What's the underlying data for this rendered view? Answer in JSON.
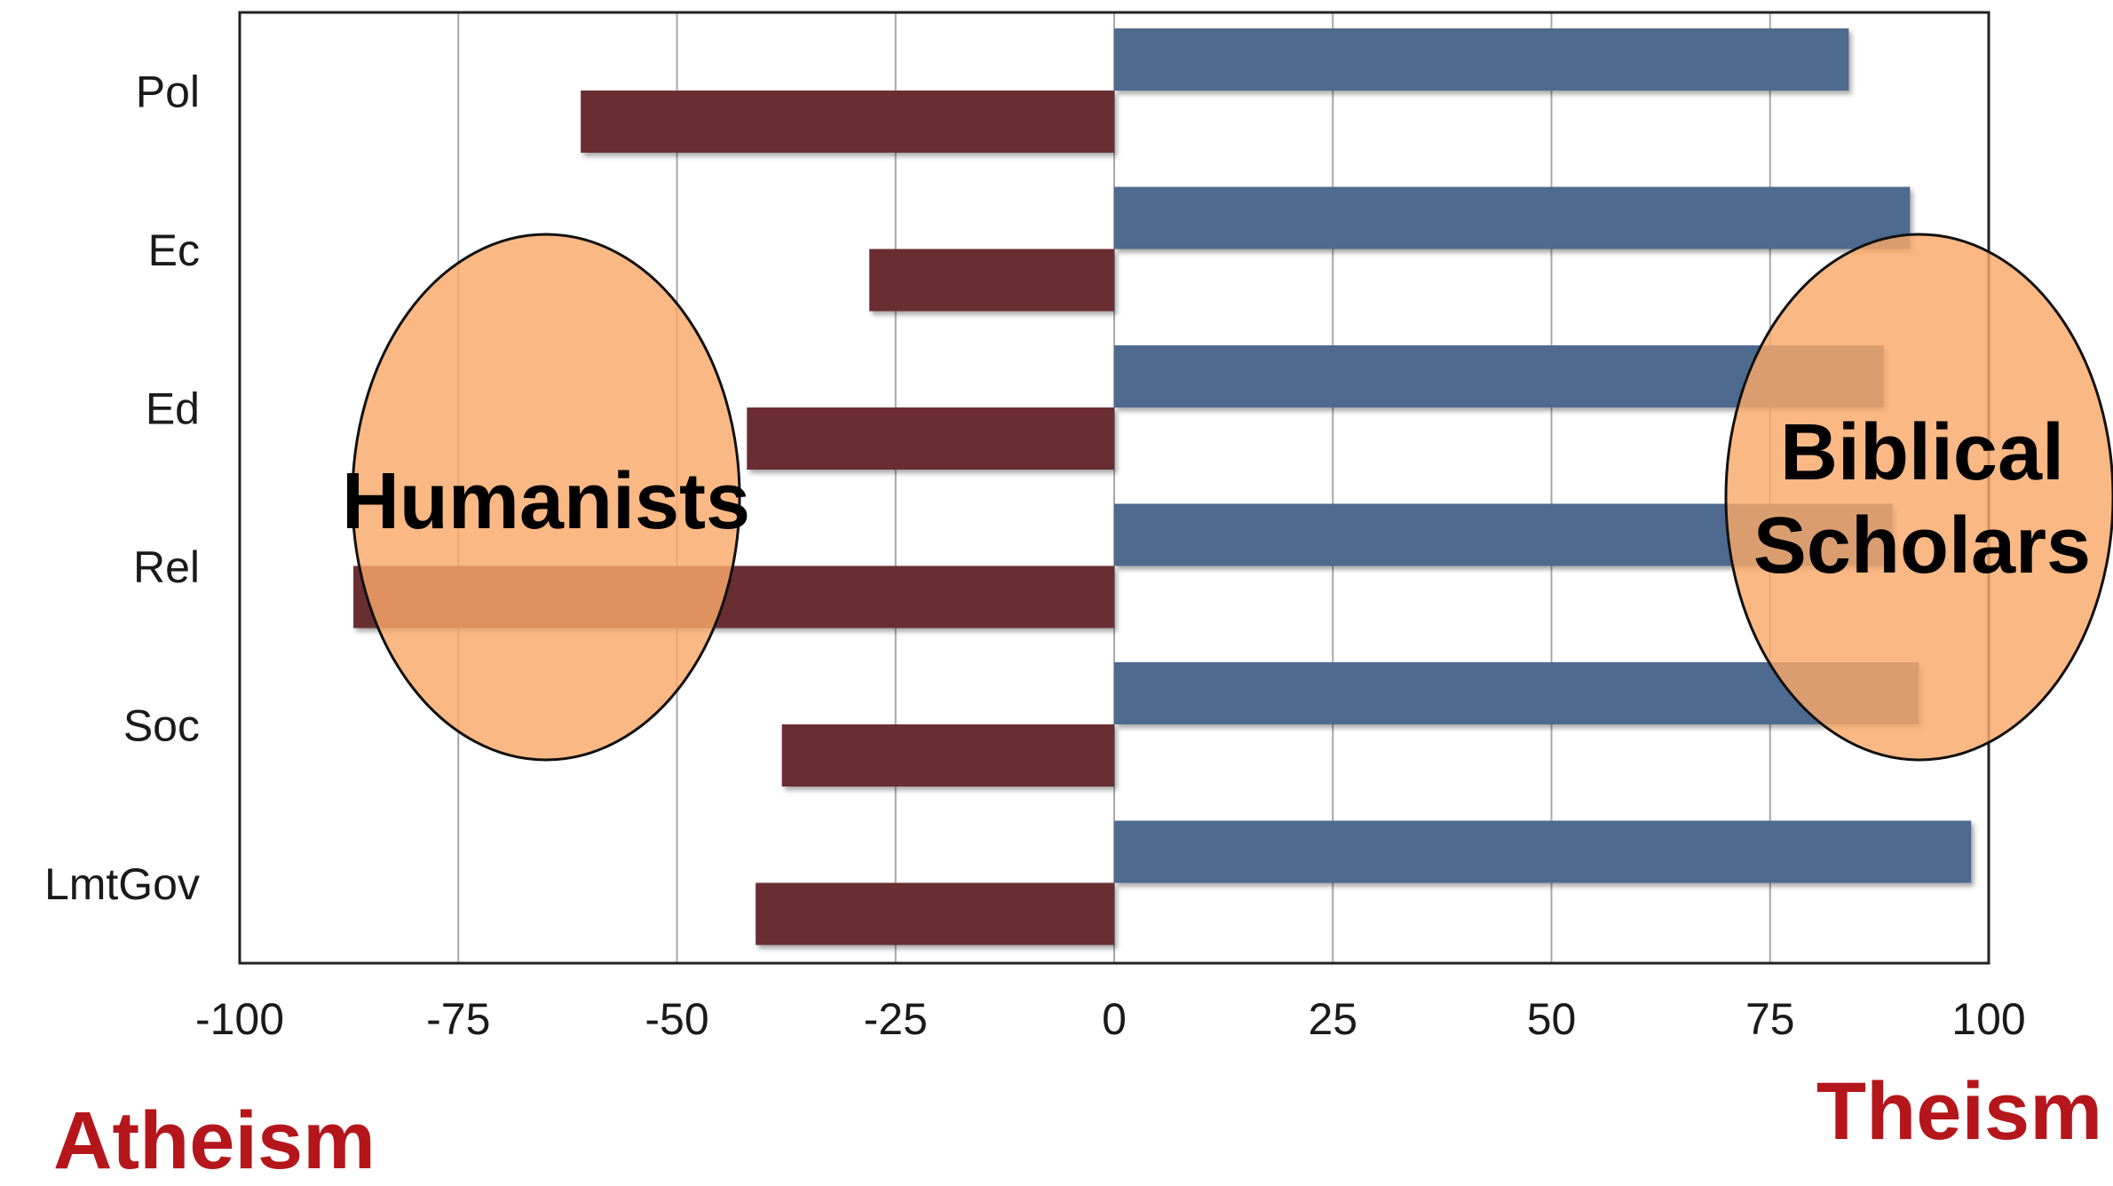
{
  "chart_data": {
    "type": "bar",
    "orientation": "horizontal",
    "categories": [
      "Pol",
      "Ec",
      "Ed",
      "Rel",
      "Soc",
      "LmtGov"
    ],
    "series": [
      {
        "values": [
          84,
          91,
          88,
          89,
          92,
          98
        ],
        "color": "#4f6b8f"
      },
      {
        "values": [
          -61,
          -28,
          -42,
          -87,
          -38,
          -41
        ],
        "color": "#6a2f31"
      }
    ],
    "xlim": [
      -100,
      100
    ],
    "xticks": [
      "-100",
      "-75",
      "-50",
      "-25",
      "0",
      "25",
      "50",
      "75",
      "100"
    ],
    "grid": true,
    "annotations": [
      {
        "text": "Humanists",
        "x": -65
      },
      {
        "text": "Biblical",
        "text2": "Scholars",
        "x": 92
      }
    ],
    "left_label": "Atheism",
    "right_label": "Theism",
    "ellipse_fill": "#f9a869",
    "label_color": "#b5161b"
  }
}
